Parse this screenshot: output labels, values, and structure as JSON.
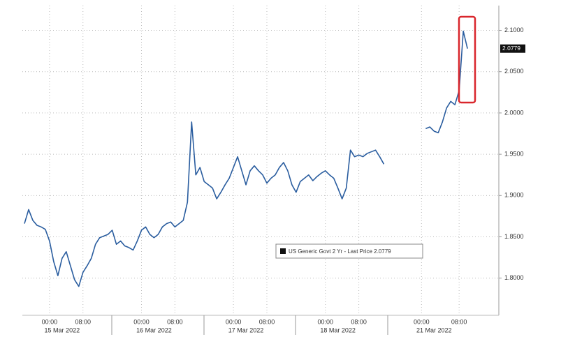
{
  "chart_data": {
    "type": "line",
    "categories": [
      null,
      null,
      null,
      null,
      null,
      null,
      "00:00",
      null,
      null,
      null,
      null,
      null,
      null,
      null,
      "08:00",
      null,
      null,
      null,
      null,
      null,
      null,
      null,
      null,
      null,
      null,
      null,
      null,
      null,
      "00:00",
      null,
      null,
      null,
      null,
      null,
      null,
      null,
      "08:00",
      null,
      null,
      null,
      null,
      null,
      null,
      null,
      null,
      null,
      null,
      null,
      null,
      null,
      "00:00",
      null,
      null,
      null,
      null,
      null,
      null,
      null,
      "08:00",
      null,
      null,
      null,
      null,
      null,
      null,
      null,
      null,
      null,
      null,
      null,
      null,
      null,
      "00:00",
      null,
      null,
      null,
      null,
      null,
      null,
      null,
      "08:00",
      null,
      null,
      null,
      null,
      null,
      null,
      null,
      null,
      null,
      null,
      null,
      null,
      null,
      null,
      "00:00",
      null,
      null,
      null,
      null,
      null,
      null,
      null,
      null,
      "08:00",
      null,
      null,
      null,
      null,
      null,
      null,
      null,
      null,
      null
    ],
    "date_labels": [
      null,
      null,
      null,
      null,
      null,
      null,
      null,
      null,
      null,
      "15 Mar 2022",
      null,
      null,
      null,
      null,
      null,
      null,
      null,
      null,
      null,
      null,
      null,
      null,
      null,
      null,
      null,
      null,
      null,
      null,
      null,
      null,
      null,
      "16 Mar 2022",
      null,
      null,
      null,
      null,
      null,
      null,
      null,
      null,
      null,
      null,
      null,
      null,
      null,
      null,
      null,
      null,
      null,
      null,
      null,
      null,
      null,
      "17 Mar 2022",
      null,
      null,
      null,
      null,
      null,
      null,
      null,
      null,
      null,
      null,
      null,
      null,
      null,
      null,
      null,
      null,
      null,
      null,
      null,
      null,
      null,
      "18 Mar 2022",
      null,
      null,
      null,
      null,
      null,
      null,
      null,
      null,
      null,
      null,
      null,
      null,
      null,
      null,
      null,
      null,
      null,
      null,
      null,
      null,
      null,
      null,
      "21 Mar 2022",
      null,
      null,
      null,
      null,
      null,
      null,
      null,
      null,
      null,
      null,
      null,
      null,
      null,
      null,
      null
    ],
    "series": [
      {
        "name": "US Generic Govt 2 Yr - Last Price 2.0779",
        "color": "#2a5d9f",
        "values": [
          1.866,
          1.883,
          1.87,
          1.864,
          1.862,
          1.859,
          1.845,
          1.82,
          1.803,
          1.824,
          1.832,
          1.815,
          1.798,
          1.79,
          1.807,
          1.815,
          1.824,
          1.841,
          1.849,
          1.851,
          1.853,
          1.858,
          1.841,
          1.845,
          1.839,
          1.837,
          1.834,
          1.845,
          1.858,
          1.862,
          1.853,
          1.849,
          1.853,
          1.862,
          1.866,
          1.868,
          1.862,
          1.866,
          1.87,
          1.892,
          1.989,
          1.925,
          1.934,
          1.917,
          1.913,
          1.909,
          1.896,
          1.904,
          1.913,
          1.921,
          1.934,
          1.947,
          1.93,
          1.913,
          1.93,
          1.936,
          1.93,
          1.925,
          1.915,
          1.921,
          1.925,
          1.934,
          1.94,
          1.93,
          1.913,
          1.904,
          1.917,
          1.921,
          1.925,
          1.918,
          1.923,
          1.927,
          1.93,
          1.925,
          1.921,
          1.909,
          1.896,
          1.909,
          1.955,
          1.947,
          1.949,
          1.947,
          1.951,
          1.953,
          1.955,
          1.947,
          1.938,
          null,
          null,
          null,
          null,
          null,
          null,
          null,
          null,
          null,
          1.981,
          1.983,
          1.978,
          1.976,
          1.989,
          2.006,
          2.014,
          2.01,
          2.027,
          2.099,
          2.0779,
          null,
          null,
          null,
          null,
          null,
          null,
          null
        ]
      }
    ],
    "last_price": 2.0779,
    "ylim": [
      1.755,
      2.13
    ],
    "yticks": [
      {
        "value": 1.8,
        "label": "1.8000"
      },
      {
        "value": 1.85,
        "label": "1.8500"
      },
      {
        "value": 1.9,
        "label": "1.9000"
      },
      {
        "value": 1.95,
        "label": "1.9500"
      },
      {
        "value": 2.0,
        "label": "2.0000"
      },
      {
        "value": 2.05,
        "label": "2.0500"
      },
      {
        "value": 2.1,
        "label": "2.1000"
      }
    ],
    "grid": true
  }
}
